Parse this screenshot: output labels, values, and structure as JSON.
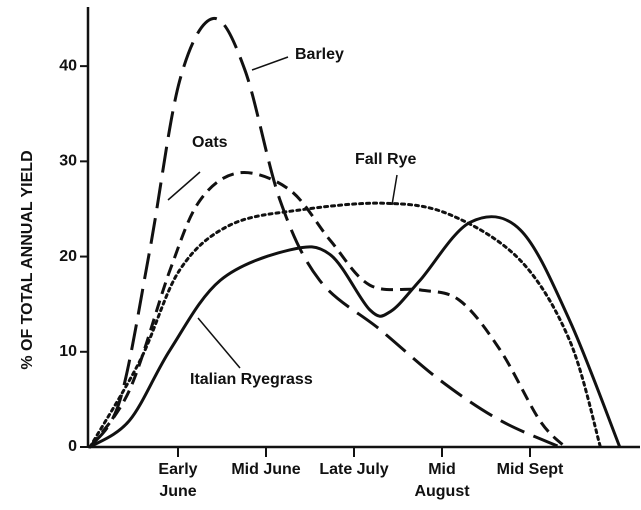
{
  "chart_data": {
    "type": "line",
    "ylabel": "% OF TOTAL ANNUAL YIELD",
    "xlim": [
      0,
      6.25
    ],
    "ylim": [
      0,
      46
    ],
    "yticks": [
      0,
      10,
      20,
      30,
      40
    ],
    "xticks": [
      {
        "value": 1,
        "label": "Early June"
      },
      {
        "value": 2,
        "label": "Mid June"
      },
      {
        "value": 3,
        "label": "Late July"
      },
      {
        "value": 4,
        "label": "Mid August"
      },
      {
        "value": 5,
        "label": "Mid Sept"
      }
    ],
    "grid": false,
    "series": [
      {
        "name": "Barley",
        "color": "#111111",
        "dash": "26,10",
        "x": [
          0,
          0.34,
          0.68,
          1.02,
          1.4,
          1.76,
          2.16,
          2.61,
          3.3,
          3.98,
          4.66,
          5.34
        ],
        "values": [
          0,
          4.9,
          20.7,
          38.5,
          45,
          39.6,
          25.9,
          17.5,
          12.3,
          7,
          2.8,
          0
        ]
      },
      {
        "name": "Oats",
        "color": "#111111",
        "dash": "12,7",
        "x": [
          0,
          0.45,
          0.91,
          1.25,
          1.7,
          2.27,
          2.73,
          3.18,
          3.75,
          4.2,
          4.66,
          5.11,
          5.4
        ],
        "values": [
          0,
          6,
          18.6,
          25.9,
          28.8,
          27,
          21.7,
          17,
          16.5,
          15.4,
          10.2,
          2.8,
          0
        ]
      },
      {
        "name": "Fall Rye",
        "color": "#111111",
        "dash": "3,4",
        "x": [
          0,
          0.57,
          1.02,
          1.59,
          2.39,
          3.35,
          4.09,
          4.89,
          5.45,
          5.8
        ],
        "values": [
          0,
          9.1,
          18.6,
          23.3,
          24.9,
          25.6,
          24.4,
          19.6,
          11.2,
          0
        ]
      },
      {
        "name": "Italian Ryegrass",
        "color": "#111111",
        "dash": "none",
        "x": [
          0,
          0.45,
          0.91,
          1.48,
          2.27,
          2.73,
          3.18,
          3.41,
          3.75,
          4.32,
          4.89,
          5.45,
          6.02
        ],
        "values": [
          0,
          2.8,
          10.2,
          17.5,
          20.7,
          20.2,
          14.4,
          14.2,
          17.5,
          23.6,
          22.8,
          13.3,
          0
        ]
      }
    ]
  }
}
